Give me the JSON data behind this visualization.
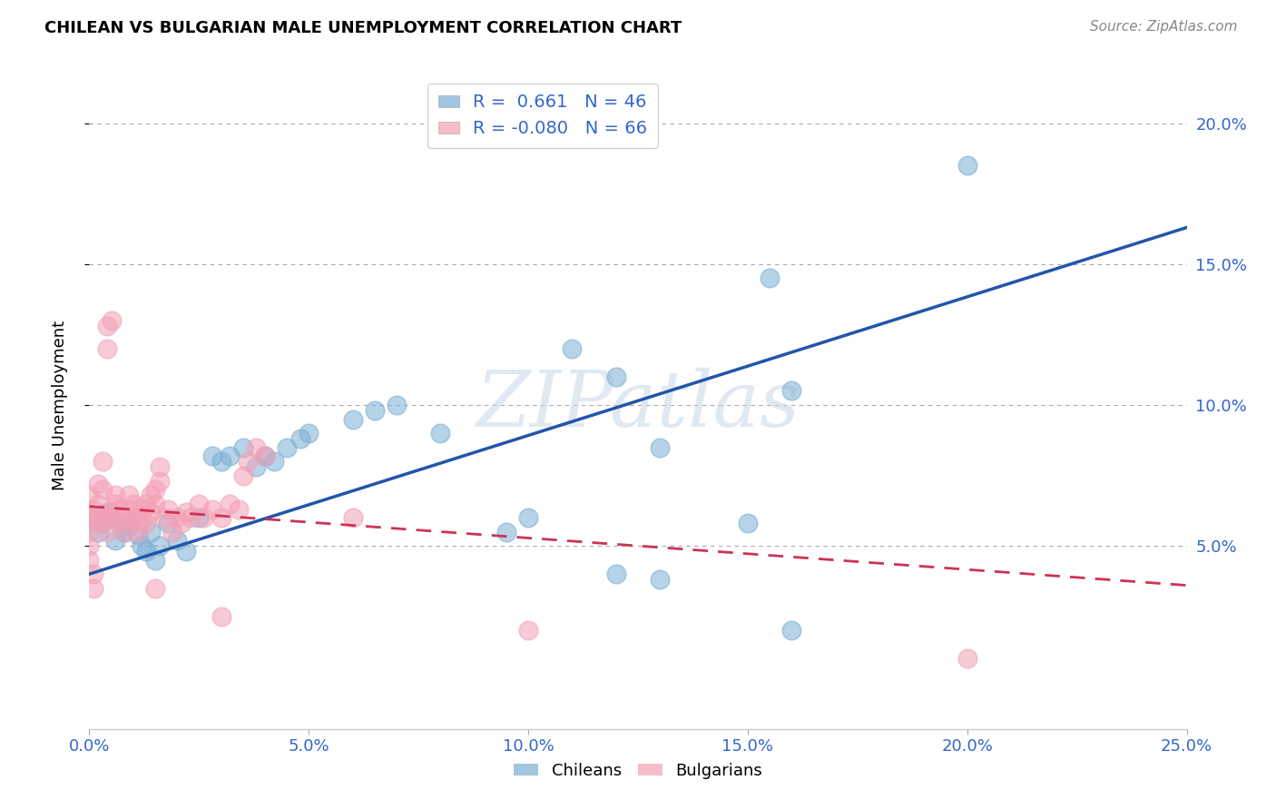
{
  "title": "CHILEAN VS BULGARIAN MALE UNEMPLOYMENT CORRELATION CHART",
  "source": "Source: ZipAtlas.com",
  "ylabel": "Male Unemployment",
  "xlim": [
    0.0,
    0.25
  ],
  "ylim": [
    -0.015,
    0.215
  ],
  "xticks": [
    0.0,
    0.05,
    0.1,
    0.15,
    0.2,
    0.25
  ],
  "xtick_labels": [
    "0.0%",
    "5.0%",
    "10.0%",
    "15.0%",
    "20.0%",
    "25.0%"
  ],
  "yticks": [
    0.05,
    0.1,
    0.15,
    0.2
  ],
  "ytick_labels": [
    "5.0%",
    "10.0%",
    "15.0%",
    "20.0%"
  ],
  "chilean_color": "#7bafd4",
  "bulgarian_color": "#f4a0b5",
  "chilean_line_color": "#2255aa",
  "bulgarian_line_color": "#cc3355",
  "watermark": "ZIPatlas",
  "legend_R_chilean": "R =  0.661",
  "legend_N_chilean": "N = 46",
  "legend_R_bulgarian": "R = -0.080",
  "legend_N_bulgarian": "N = 66",
  "chilean_line_x0": 0.0,
  "chilean_line_y0": 0.04,
  "chilean_line_x1": 0.25,
  "chilean_line_y1": 0.163,
  "bulgarian_line_x0": 0.0,
  "bulgarian_line_y0": 0.064,
  "bulgarian_line_x1": 0.25,
  "bulgarian_line_y1": 0.036,
  "chilean_pts": [
    [
      0.001,
      0.06
    ],
    [
      0.002,
      0.055
    ],
    [
      0.003,
      0.058
    ],
    [
      0.004,
      0.062
    ],
    [
      0.005,
      0.06
    ],
    [
      0.006,
      0.052
    ],
    [
      0.007,
      0.058
    ],
    [
      0.008,
      0.055
    ],
    [
      0.009,
      0.057
    ],
    [
      0.01,
      0.06
    ],
    [
      0.011,
      0.054
    ],
    [
      0.012,
      0.05
    ],
    [
      0.013,
      0.048
    ],
    [
      0.014,
      0.055
    ],
    [
      0.015,
      0.045
    ],
    [
      0.016,
      0.05
    ],
    [
      0.018,
      0.058
    ],
    [
      0.02,
      0.052
    ],
    [
      0.022,
      0.048
    ],
    [
      0.025,
      0.06
    ],
    [
      0.028,
      0.082
    ],
    [
      0.03,
      0.08
    ],
    [
      0.032,
      0.082
    ],
    [
      0.035,
      0.085
    ],
    [
      0.038,
      0.078
    ],
    [
      0.04,
      0.082
    ],
    [
      0.042,
      0.08
    ],
    [
      0.045,
      0.085
    ],
    [
      0.048,
      0.088
    ],
    [
      0.05,
      0.09
    ],
    [
      0.06,
      0.095
    ],
    [
      0.065,
      0.098
    ],
    [
      0.07,
      0.1
    ],
    [
      0.08,
      0.09
    ],
    [
      0.095,
      0.055
    ],
    [
      0.1,
      0.06
    ],
    [
      0.11,
      0.12
    ],
    [
      0.12,
      0.11
    ],
    [
      0.13,
      0.085
    ],
    [
      0.15,
      0.058
    ],
    [
      0.155,
      0.145
    ],
    [
      0.16,
      0.105
    ],
    [
      0.12,
      0.04
    ],
    [
      0.13,
      0.038
    ],
    [
      0.16,
      0.02
    ],
    [
      0.2,
      0.185
    ]
  ],
  "bulgarian_pts": [
    [
      0.001,
      0.063
    ],
    [
      0.002,
      0.06
    ],
    [
      0.002,
      0.065
    ],
    [
      0.003,
      0.058
    ],
    [
      0.003,
      0.07
    ],
    [
      0.004,
      0.06
    ],
    [
      0.004,
      0.055
    ],
    [
      0.005,
      0.06
    ],
    [
      0.005,
      0.062
    ],
    [
      0.006,
      0.065
    ],
    [
      0.006,
      0.068
    ],
    [
      0.007,
      0.063
    ],
    [
      0.007,
      0.058
    ],
    [
      0.008,
      0.06
    ],
    [
      0.008,
      0.055
    ],
    [
      0.009,
      0.063
    ],
    [
      0.009,
      0.068
    ],
    [
      0.01,
      0.06
    ],
    [
      0.01,
      0.065
    ],
    [
      0.011,
      0.058
    ],
    [
      0.011,
      0.055
    ],
    [
      0.012,
      0.06
    ],
    [
      0.012,
      0.063
    ],
    [
      0.013,
      0.058
    ],
    [
      0.013,
      0.065
    ],
    [
      0.014,
      0.068
    ],
    [
      0.014,
      0.062
    ],
    [
      0.015,
      0.07
    ],
    [
      0.015,
      0.065
    ],
    [
      0.016,
      0.073
    ],
    [
      0.016,
      0.078
    ],
    [
      0.017,
      0.06
    ],
    [
      0.018,
      0.063
    ],
    [
      0.019,
      0.055
    ],
    [
      0.02,
      0.06
    ],
    [
      0.021,
      0.058
    ],
    [
      0.022,
      0.062
    ],
    [
      0.023,
      0.06
    ],
    [
      0.025,
      0.065
    ],
    [
      0.026,
      0.06
    ],
    [
      0.028,
      0.063
    ],
    [
      0.03,
      0.06
    ],
    [
      0.032,
      0.065
    ],
    [
      0.034,
      0.063
    ],
    [
      0.035,
      0.075
    ],
    [
      0.036,
      0.08
    ],
    [
      0.038,
      0.085
    ],
    [
      0.04,
      0.082
    ],
    [
      0.0,
      0.06
    ],
    [
      0.0,
      0.055
    ],
    [
      0.0,
      0.05
    ],
    [
      0.0,
      0.045
    ],
    [
      0.001,
      0.04
    ],
    [
      0.001,
      0.035
    ],
    [
      0.0,
      0.068
    ],
    [
      0.0,
      0.058
    ],
    [
      0.002,
      0.072
    ],
    [
      0.003,
      0.08
    ],
    [
      0.004,
      0.128
    ],
    [
      0.004,
      0.12
    ],
    [
      0.005,
      0.13
    ],
    [
      0.015,
      0.035
    ],
    [
      0.03,
      0.025
    ],
    [
      0.06,
      0.06
    ],
    [
      0.1,
      0.02
    ],
    [
      0.2,
      0.01
    ]
  ]
}
